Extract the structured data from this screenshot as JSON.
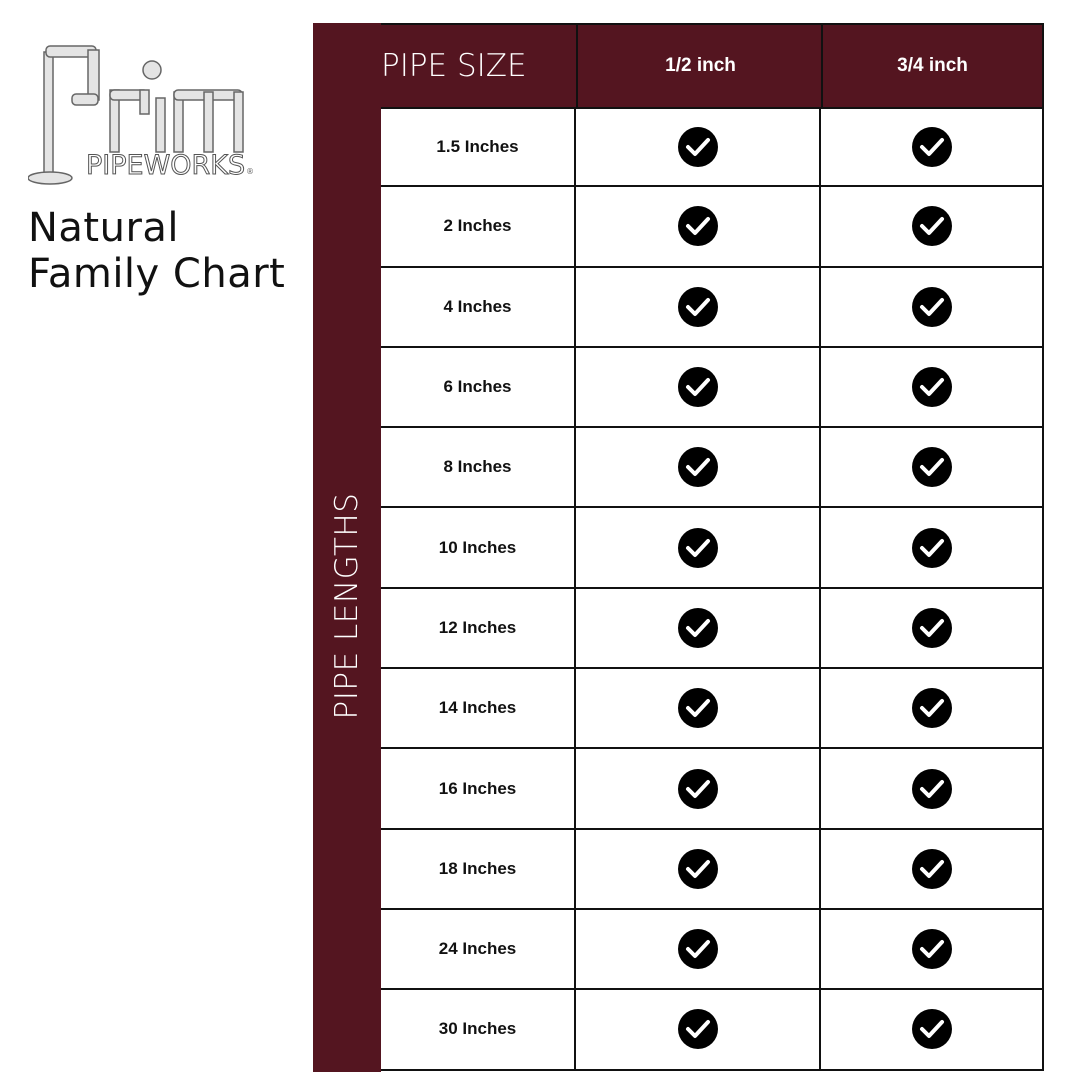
{
  "brand": {
    "logo_word": "Prim",
    "logo_sub": "PIPEWORKS",
    "trademark": "®"
  },
  "title": {
    "line1": "Natural",
    "line2": "Family Chart"
  },
  "colors": {
    "header_bg": "#541520",
    "check_bg": "#000000"
  },
  "table": {
    "side_label": "PIPE LENGTHS",
    "headers": [
      "PIPE SIZE",
      "1/2 inch",
      "3/4 inch"
    ],
    "rows": [
      {
        "length": "1.5 Inches",
        "half": true,
        "three_quarter": true
      },
      {
        "length": "2 Inches",
        "half": true,
        "three_quarter": true
      },
      {
        "length": "4 Inches",
        "half": true,
        "three_quarter": true
      },
      {
        "length": "6 Inches",
        "half": true,
        "three_quarter": true
      },
      {
        "length": "8 Inches",
        "half": true,
        "three_quarter": true
      },
      {
        "length": "10 Inches",
        "half": true,
        "three_quarter": true
      },
      {
        "length": "12 Inches",
        "half": true,
        "three_quarter": true
      },
      {
        "length": "14 Inches",
        "half": true,
        "three_quarter": true
      },
      {
        "length": "16 Inches",
        "half": true,
        "three_quarter": true
      },
      {
        "length": "18 Inches",
        "half": true,
        "three_quarter": true
      },
      {
        "length": "24 Inches",
        "half": true,
        "three_quarter": true
      },
      {
        "length": "30 Inches",
        "half": true,
        "three_quarter": true
      }
    ],
    "check_icon": "check-circle-icon"
  }
}
